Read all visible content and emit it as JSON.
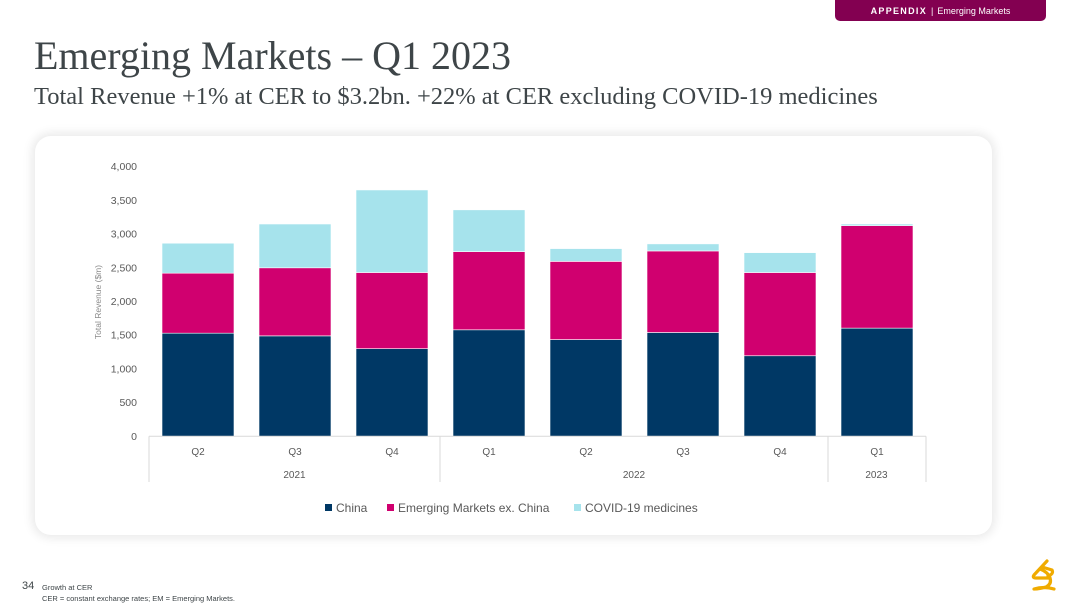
{
  "banner": {
    "section": "APPENDIX",
    "separator": "|",
    "topic": "Emerging Markets"
  },
  "header": {
    "title": "Emerging Markets – Q1 2023",
    "subtitle": "Total Revenue +1% at CER to $3.2bn. +22% at CER excluding COVID-19 medicines"
  },
  "footer": {
    "page_number": "34",
    "notes": [
      "Growth at CER",
      "CER = constant exchange rates; EM = Emerging Markets."
    ]
  },
  "colors": {
    "accent": "#830051",
    "china": "#003865",
    "em_ex_china": "#D0006F",
    "covid": "#A6E3EC",
    "logo": "#F0AB00"
  },
  "chart_data": {
    "type": "bar",
    "stacked": true,
    "title": "",
    "xlabel": "",
    "ylabel": "Total Revenue ($m)",
    "ylim": [
      0,
      4000
    ],
    "yticks": [
      0,
      500,
      1000,
      1500,
      2000,
      2500,
      3000,
      3500,
      4000
    ],
    "ytick_labels": [
      "0",
      "500",
      "1,000",
      "1,500",
      "2,000",
      "2,500",
      "3,000",
      "3,500",
      "4,000"
    ],
    "grid": false,
    "legend_position": "bottom",
    "categories": [
      "Q2",
      "Q3",
      "Q4",
      "Q1",
      "Q2",
      "Q3",
      "Q4",
      "Q1"
    ],
    "year_groups": [
      {
        "label": "2021",
        "count": 3
      },
      {
        "label": "2022",
        "count": 4
      },
      {
        "label": "2023",
        "count": 1
      }
    ],
    "series": [
      {
        "name": "China",
        "color": "#003865",
        "values": [
          1530,
          1490,
          1300,
          1580,
          1435,
          1540,
          1195,
          1605
        ]
      },
      {
        "name": "Emerging Markets ex. China",
        "color": "#D0006F",
        "values": [
          890,
          1010,
          1130,
          1160,
          1160,
          1210,
          1235,
          1520
        ]
      },
      {
        "name": "COVID-19 medicines",
        "color": "#A6E3EC",
        "values": [
          445,
          650,
          1225,
          620,
          190,
          105,
          295,
          25
        ]
      }
    ]
  }
}
